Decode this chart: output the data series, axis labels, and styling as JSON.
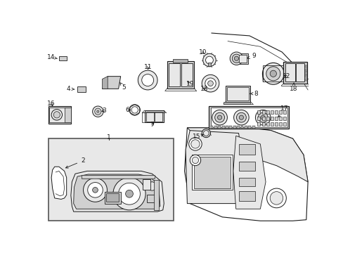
{
  "bg": "#ffffff",
  "lc": "#1a1a1a",
  "gray1": "#e8e8e8",
  "gray2": "#d0d0d0",
  "gray3": "#b0b0b0",
  "lw_main": 0.8,
  "lw_thin": 0.5,
  "fs": 6.5
}
